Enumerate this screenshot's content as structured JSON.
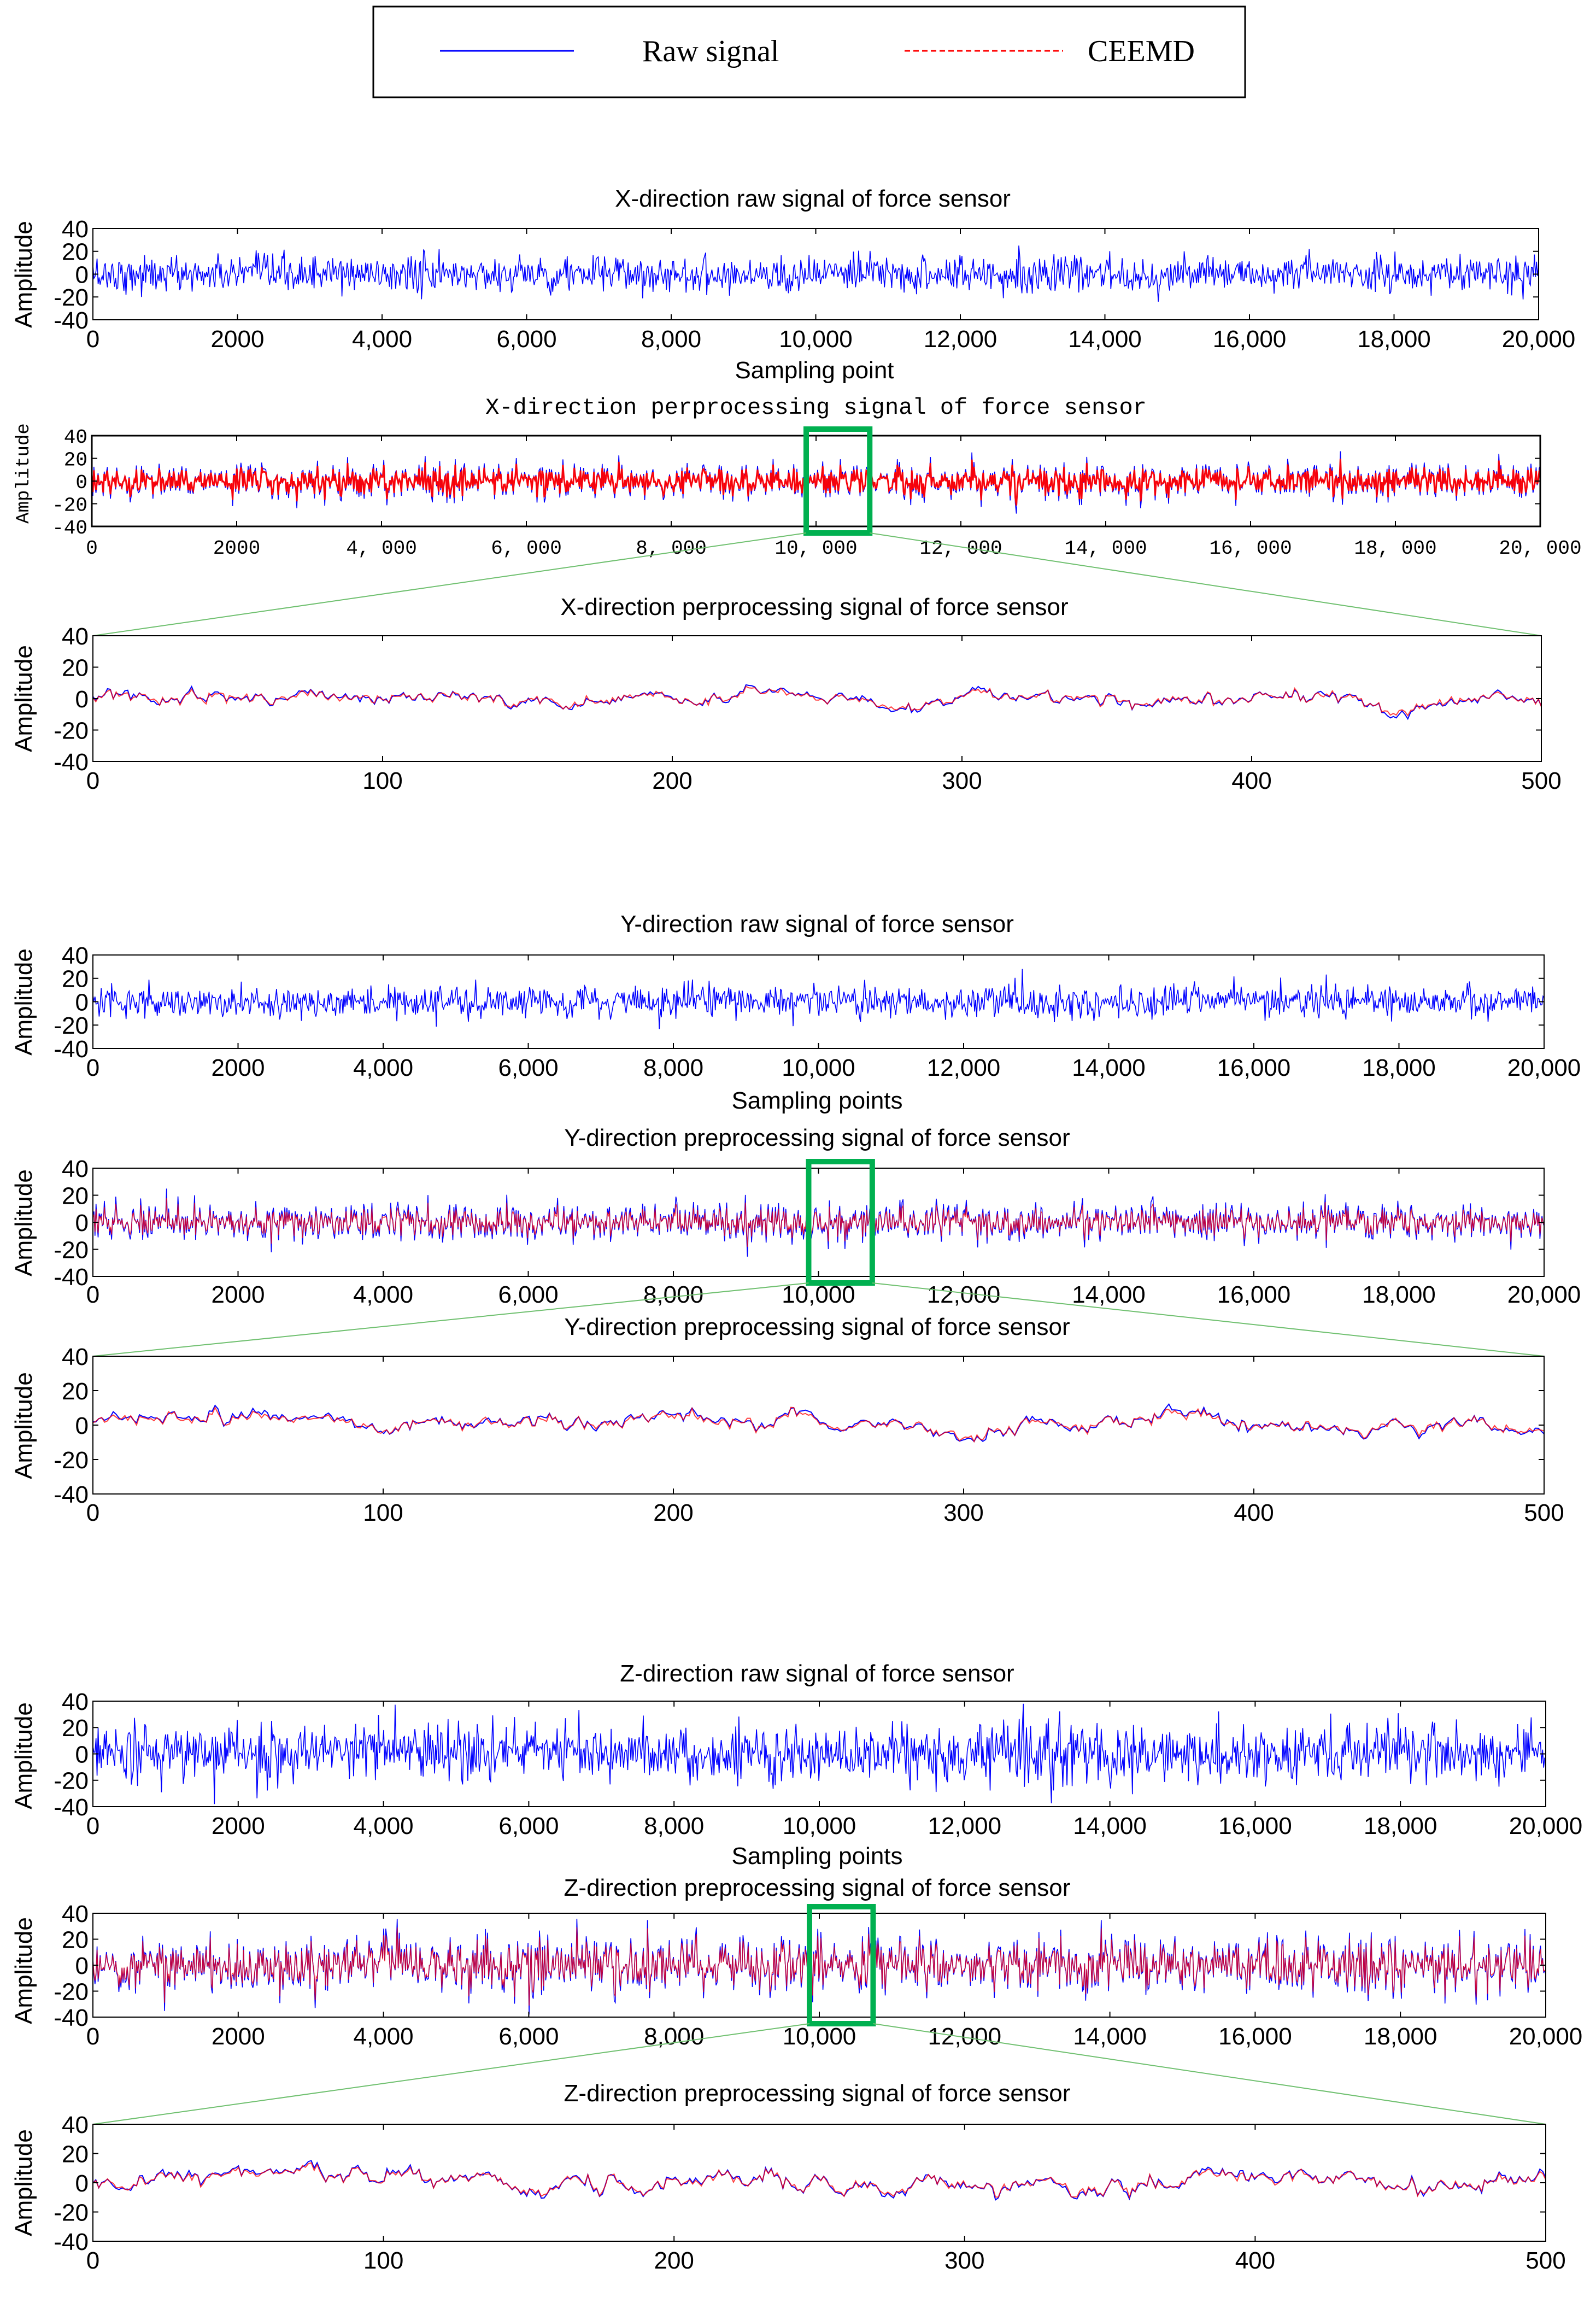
{
  "legend": {
    "raw_label": "Raw signal",
    "ceemd_label": "CEEMD",
    "raw_color": "#0000ff",
    "ceemd_color": "#ff0000"
  },
  "colors": {
    "zoom_box": "#00b050",
    "zoom_line": "#70c070",
    "axis": "#000000",
    "grid": "#c0c0c0"
  },
  "chart_data": [
    {
      "id": "x-raw",
      "type": "line",
      "title": "X-direction raw signal of force sensor",
      "xlabel": "Sampling point",
      "ylabel": "Amplitude",
      "xlim": [
        0,
        20000
      ],
      "ylim": [
        -40,
        40
      ],
      "xticks": [
        "0",
        "2000",
        "4,000",
        "6,000",
        "8,000",
        "10,000",
        "12,000",
        "14,000",
        "16,000",
        "18,000",
        "20,000"
      ],
      "yticks": [
        "40",
        "20",
        "0",
        "-20",
        "-40"
      ],
      "series": [
        {
          "name": "Raw signal",
          "amplitude_std": 8,
          "peak": 25
        }
      ]
    },
    {
      "id": "x-pre",
      "type": "line",
      "title": "X-direction perprocessing signal of force sensor",
      "xlabel": "",
      "ylabel": "Amplitude",
      "xlim": [
        0,
        20000
      ],
      "ylim": [
        -40,
        40
      ],
      "xticks": [
        "0",
        "2000",
        "4, 000",
        "6, 000",
        "8, 000",
        "10, 000",
        "12, 000",
        "14, 000",
        "16, 000",
        "18, 000",
        "20, 000"
      ],
      "yticks": [
        "40",
        "20",
        "0",
        "-20",
        "-40"
      ],
      "zoom_range": [
        10000,
        10500
      ],
      "series": [
        {
          "name": "Raw signal",
          "amplitude_std": 8
        },
        {
          "name": "CEEMD",
          "amplitude_std": 6
        }
      ]
    },
    {
      "id": "x-zoom",
      "type": "line",
      "title": "X-direction perprocessing signal of force sensor",
      "xlabel": "",
      "ylabel": "Amplitude",
      "xlim": [
        0,
        500
      ],
      "ylim": [
        -40,
        40
      ],
      "xticks": [
        "0",
        "100",
        "200",
        "300",
        "400",
        "500"
      ],
      "yticks": [
        "40",
        "20",
        "0",
        "-20",
        "-40"
      ],
      "series": [
        {
          "name": "Raw signal",
          "amplitude_std": 7
        },
        {
          "name": "CEEMD",
          "amplitude_std": 6
        }
      ]
    },
    {
      "id": "y-raw",
      "type": "line",
      "title": "Y-direction raw signal of force sensor",
      "xlabel": "Sampling points",
      "ylabel": "Amplitude",
      "xlim": [
        0,
        20000
      ],
      "ylim": [
        -40,
        40
      ],
      "xticks": [
        "0",
        "2000",
        "4,000",
        "6,000",
        "8,000",
        "10,000",
        "12,000",
        "14,000",
        "16,000",
        "18,000",
        "20,000"
      ],
      "yticks": [
        "40",
        "20",
        "0",
        "-20",
        "-40"
      ],
      "series": [
        {
          "name": "Raw signal",
          "amplitude_std": 7,
          "peak": 28
        }
      ]
    },
    {
      "id": "y-pre",
      "type": "line",
      "title": "Y-direction preprocessing signal of force sensor",
      "xlabel": "",
      "ylabel": "Amplitude",
      "xlim": [
        0,
        20000
      ],
      "ylim": [
        -40,
        40
      ],
      "xticks": [
        "0",
        "2000",
        "4,000",
        "6,000",
        "8,000",
        "10,000",
        "12,000",
        "14,000",
        "16,000",
        "18,000",
        "20,000"
      ],
      "yticks": [
        "40",
        "20",
        "0",
        "-20",
        "-40"
      ],
      "zoom_range": [
        10000,
        10500
      ],
      "series": [
        {
          "name": "Raw signal",
          "amplitude_std": 7
        },
        {
          "name": "CEEMD",
          "amplitude_std": 5
        }
      ]
    },
    {
      "id": "y-zoom",
      "type": "line",
      "title": "Y-direction preprocessing signal of force sensor",
      "xlabel": "",
      "ylabel": "Amplitude",
      "xlim": [
        0,
        500
      ],
      "ylim": [
        -40,
        40
      ],
      "xticks": [
        "0",
        "100",
        "200",
        "300",
        "400",
        "500"
      ],
      "yticks": [
        "40",
        "20",
        "0",
        "-20",
        "-40"
      ],
      "series": [
        {
          "name": "Raw signal",
          "amplitude_std": 7
        },
        {
          "name": "CEEMD",
          "amplitude_std": 6
        }
      ]
    },
    {
      "id": "z-raw",
      "type": "line",
      "title": "Z-direction raw signal of force sensor",
      "xlabel": "Sampling points",
      "ylabel": "Amplitude",
      "xlim": [
        0,
        20000
      ],
      "ylim": [
        -40,
        40
      ],
      "xticks": [
        "0",
        "2000",
        "4,000",
        "6,000",
        "8,000",
        "10,000",
        "12,000",
        "14,000",
        "16,000",
        "18,000",
        "20,000"
      ],
      "yticks": [
        "40",
        "20",
        "0",
        "-20",
        "-40"
      ],
      "series": [
        {
          "name": "Raw signal",
          "amplitude_std": 11,
          "peak": 38
        }
      ]
    },
    {
      "id": "z-pre",
      "type": "line",
      "title": "Z-direction preprocessing signal of force sensor",
      "xlabel": "",
      "ylabel": "Amplitude",
      "xlim": [
        0,
        20000
      ],
      "ylim": [
        -40,
        40
      ],
      "xticks": [
        "0",
        "2000",
        "4,000",
        "6,000",
        "8,000",
        "10,000",
        "12,000",
        "14,000",
        "16,000",
        "18,000",
        "20,000"
      ],
      "yticks": [
        "40",
        "20",
        "0",
        "-20",
        "-40"
      ],
      "zoom_range": [
        10000,
        10500
      ],
      "series": [
        {
          "name": "Raw signal",
          "amplitude_std": 11
        },
        {
          "name": "CEEMD",
          "amplitude_std": 9
        }
      ]
    },
    {
      "id": "z-zoom",
      "type": "line",
      "title": "Z-direction preprocessing signal of force sensor",
      "xlabel": "",
      "ylabel": "Amplitude",
      "xlim": [
        0,
        500
      ],
      "ylim": [
        -40,
        40
      ],
      "xticks": [
        "0",
        "100",
        "200",
        "300",
        "400",
        "500"
      ],
      "yticks": [
        "40",
        "20",
        "0",
        "-20",
        "-40"
      ],
      "series": [
        {
          "name": "Raw signal",
          "amplitude_std": 10
        },
        {
          "name": "CEEMD",
          "amplitude_std": 9
        }
      ]
    }
  ]
}
